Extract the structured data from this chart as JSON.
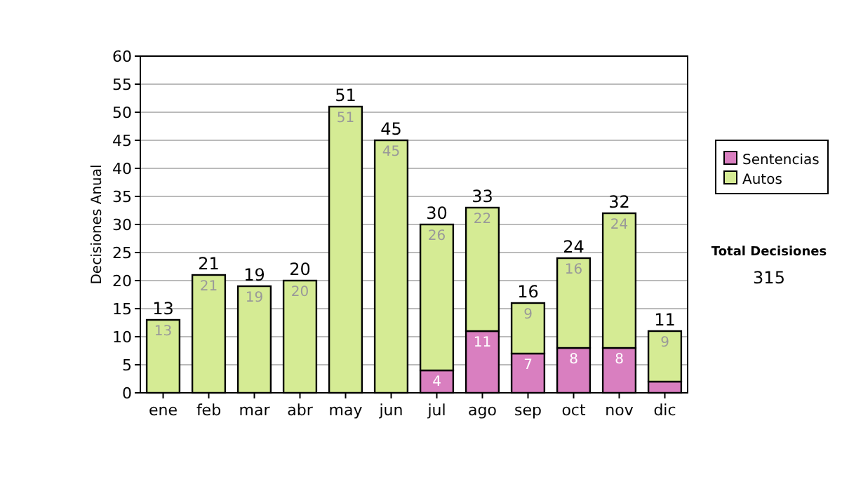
{
  "chart_data": {
    "type": "bar",
    "stacked": true,
    "ylabel": "Decisiones Anual",
    "categories": [
      "ene",
      "feb",
      "mar",
      "abr",
      "may",
      "jun",
      "jul",
      "ago",
      "sep",
      "oct",
      "nov",
      "dic"
    ],
    "series": [
      {
        "name": "Sentencias",
        "color": "#d97fc0",
        "values": [
          0,
          0,
          0,
          0,
          0,
          0,
          4,
          11,
          7,
          8,
          8,
          2
        ],
        "value_labels": [
          null,
          null,
          null,
          null,
          null,
          null,
          "4",
          "11",
          "7",
          "8",
          "8",
          null
        ]
      },
      {
        "name": "Autos",
        "color": "#d5eb94",
        "values": [
          13,
          21,
          19,
          20,
          51,
          45,
          26,
          22,
          9,
          16,
          24,
          9
        ],
        "value_labels": [
          "13",
          "21",
          "19",
          "20",
          "51",
          "45",
          "26",
          "22",
          "9",
          "16",
          "24",
          "9"
        ]
      }
    ],
    "totals": [
      "13",
      "21",
      "19",
      "20",
      "51",
      "45",
      "30",
      "33",
      "16",
      "24",
      "32",
      "11"
    ],
    "ylim": [
      0,
      60
    ],
    "yticks": [
      0,
      5,
      10,
      15,
      20,
      25,
      30,
      35,
      40,
      45,
      50,
      55,
      60
    ],
    "grid": "y",
    "legend": "right",
    "annotations": [
      "Total Decisiones",
      "315"
    ]
  }
}
